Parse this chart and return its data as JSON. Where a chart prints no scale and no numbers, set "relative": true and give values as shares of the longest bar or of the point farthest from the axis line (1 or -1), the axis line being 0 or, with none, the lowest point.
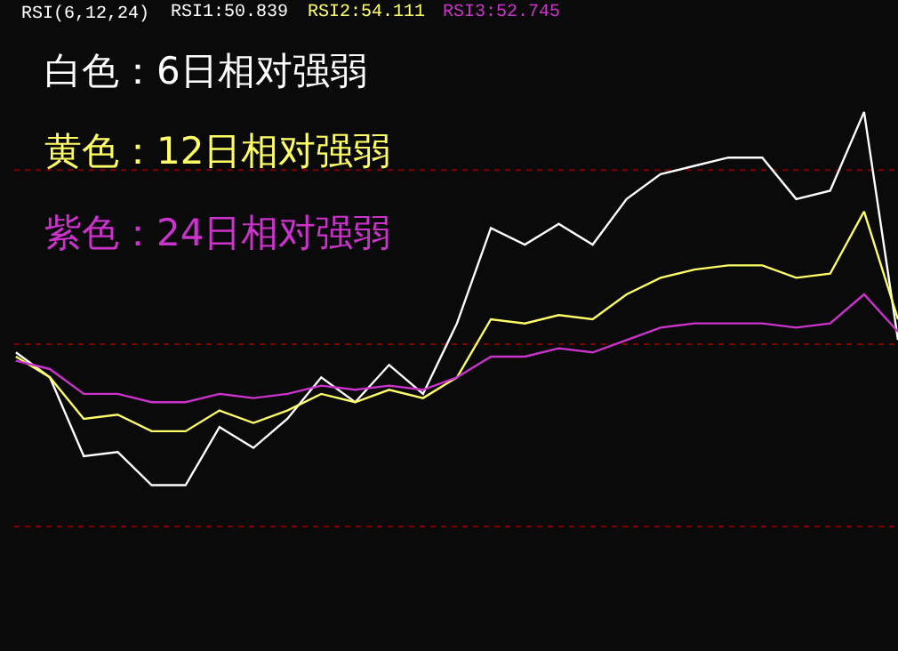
{
  "chart_data": {
    "type": "line",
    "relative": true,
    "categories": [
      null,
      null,
      null,
      null,
      null,
      null,
      null,
      null,
      null,
      null,
      null,
      null,
      null,
      null,
      null,
      null,
      null,
      null,
      null,
      null,
      null,
      null,
      null,
      null,
      null,
      null,
      null
    ],
    "series": [
      {
        "name": "白色：6日相对强弱",
        "color": "#ffffff",
        "values": [
          0.42,
          0.36,
          0.17,
          0.18,
          0.1,
          0.1,
          0.24,
          0.19,
          0.26,
          0.36,
          0.3,
          0.39,
          0.32,
          0.49,
          0.72,
          0.68,
          0.73,
          0.68,
          0.79,
          0.85,
          0.87,
          0.89,
          0.89,
          0.79,
          0.81,
          1,
          0.45
        ]
      },
      {
        "name": "黄色：12日相对强弱",
        "color": "#ffff66",
        "values": [
          0.41,
          0.36,
          0.26,
          0.27,
          0.23,
          0.23,
          0.28,
          0.25,
          0.28,
          0.32,
          0.3,
          0.33,
          0.31,
          0.36,
          0.5,
          0.49,
          0.51,
          0.5,
          0.56,
          0.6,
          0.62,
          0.63,
          0.63,
          0.6,
          0.61,
          0.76,
          0.5
        ]
      },
      {
        "name": "紫色：24日相对强弱",
        "color": "#cc33cc",
        "values": [
          0.4,
          0.38,
          0.32,
          0.32,
          0.3,
          0.3,
          0.32,
          0.31,
          0.32,
          0.34,
          0.33,
          0.34,
          0.33,
          0.36,
          0.41,
          0.41,
          0.43,
          0.42,
          0.45,
          0.48,
          0.49,
          0.49,
          0.49,
          0.48,
          0.49,
          0.56,
          0.47
        ]
      }
    ],
    "annotations": [
      "RSI(6,12,24)",
      "RSI1:50.839",
      "RSI2:54.111",
      "RSI3:52.745"
    ],
    "ref_lines": [
      {
        "axis": "y",
        "value": 0.86,
        "color": "#800000",
        "line_style": "dotted"
      },
      {
        "axis": "y",
        "value": 0.44,
        "color": "#800000",
        "line_style": "dotted"
      },
      {
        "axis": "y",
        "value": 0,
        "color": "#800000",
        "line_style": "dotted"
      }
    ],
    "legend": "top left",
    "marker": "none",
    "line_style": "solid"
  }
}
